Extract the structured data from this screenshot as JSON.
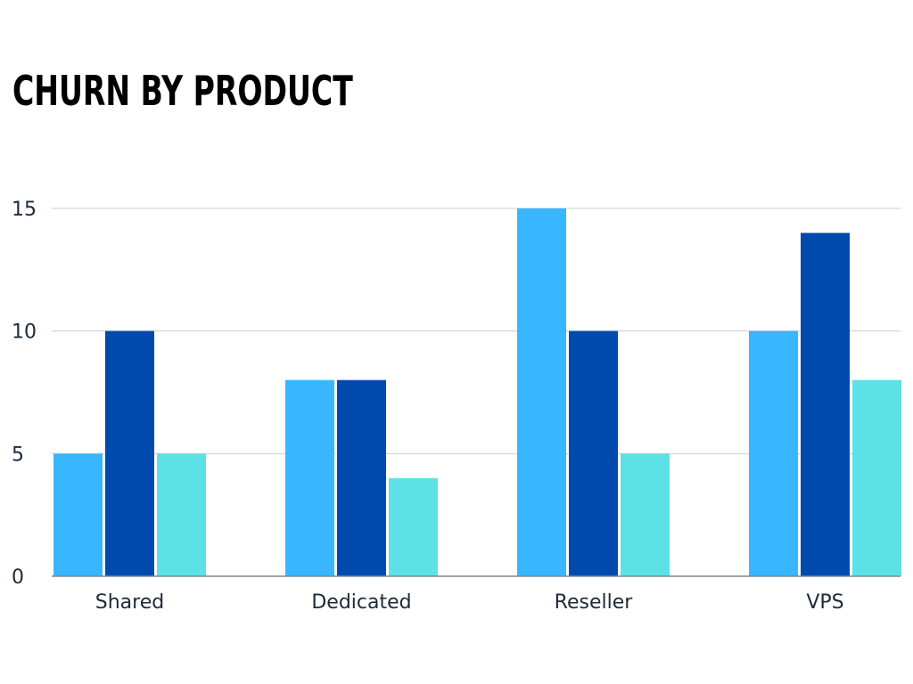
{
  "chart_data": {
    "type": "bar",
    "title": "CHURN BY PRODUCT",
    "xlabel": "",
    "ylabel": "",
    "categories": [
      "Shared",
      "Dedicated",
      "Reseller",
      "VPS"
    ],
    "series": [
      {
        "values": [
          5,
          8,
          15,
          10
        ],
        "color": "#38b6ff"
      },
      {
        "values": [
          10,
          8,
          10,
          14
        ],
        "color": "#004aad"
      },
      {
        "values": [
          5,
          4,
          5,
          8
        ],
        "color": "#5ce1e6"
      }
    ],
    "ylim": [
      0,
      15
    ],
    "yticks": [
      0,
      5,
      10,
      15
    ],
    "grid": true,
    "legend": "none"
  },
  "colors": {
    "grid": "#c8ccd2",
    "axis": "#7a8796"
  }
}
